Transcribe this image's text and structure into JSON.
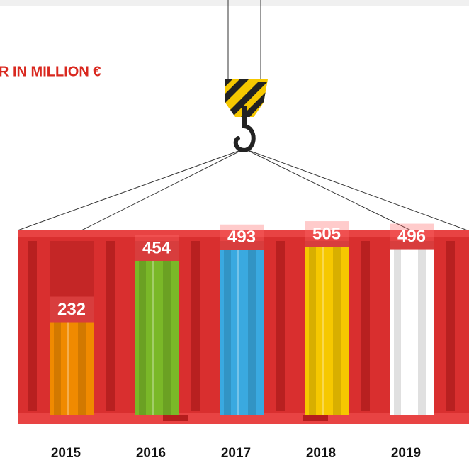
{
  "chart_data": {
    "type": "bar",
    "title": "R IN MILLION €",
    "categories": [
      "2015",
      "2016",
      "2017",
      "2018",
      "2019"
    ],
    "values": [
      232,
      454,
      493,
      505,
      496
    ],
    "colors": [
      "#f08a00",
      "#7ab828",
      "#3aa9e0",
      "#f6c800",
      "#ffffff"
    ]
  }
}
